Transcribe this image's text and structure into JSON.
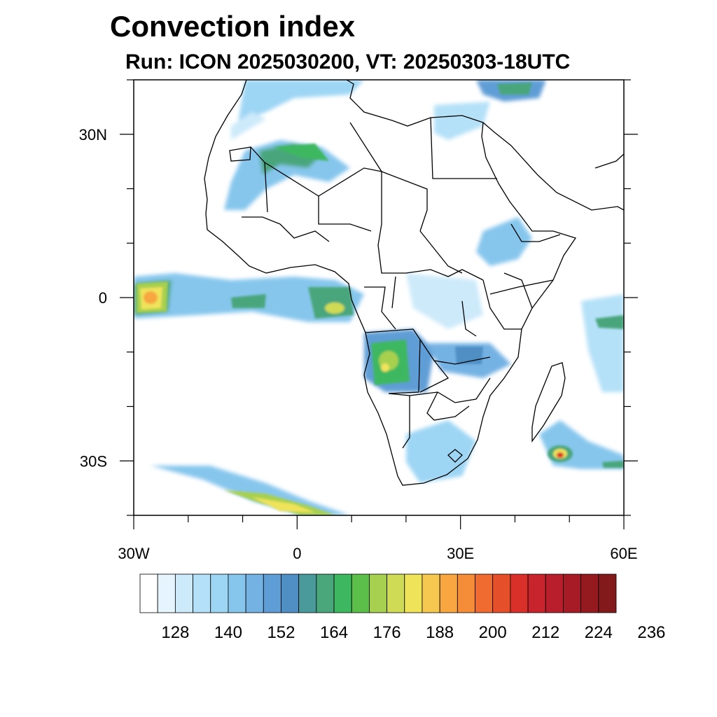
{
  "title": "Convection index",
  "subtitle": "Run: ICON 2025030200,  VT: 20250303-18UTC",
  "map": {
    "extent": {
      "lon": [
        -30,
        60
      ],
      "lat": [
        -40,
        40
      ]
    },
    "lat_ticks": [
      {
        "lat": 30,
        "label": "30N"
      },
      {
        "lat": 0,
        "label": "0"
      },
      {
        "lat": -30,
        "label": "30S"
      }
    ],
    "lon_ticks": [
      {
        "lon": -30,
        "label": "30W"
      },
      {
        "lon": 0,
        "label": "0"
      },
      {
        "lon": 30,
        "label": "30E"
      },
      {
        "lon": 60,
        "label": "60E"
      }
    ],
    "minor_lat_ticks": [
      -40,
      -20,
      -10,
      10,
      20,
      40
    ],
    "minor_lon_ticks": [
      -20,
      -10,
      10,
      20,
      40,
      50
    ]
  },
  "colorbar": {
    "colors": [
      "#ffffff",
      "#e6f5fd",
      "#cdeafa",
      "#b4e1f8",
      "#9dd6f4",
      "#86c6ed",
      "#74b2e4",
      "#5f9dd6",
      "#4f8fc4",
      "#4a9a9b",
      "#4aa67b",
      "#3db860",
      "#5bbf4a",
      "#a7d050",
      "#cfdb55",
      "#efe35a",
      "#f6c84f",
      "#f7a640",
      "#f48c38",
      "#ef6b2f",
      "#e5502a",
      "#d9302a",
      "#c8242e",
      "#b81e2b",
      "#a71b26",
      "#951a20",
      "#821a1c"
    ],
    "labels": [
      "128",
      "140",
      "152",
      "164",
      "176",
      "188",
      "200",
      "212",
      "224",
      "236"
    ]
  }
}
